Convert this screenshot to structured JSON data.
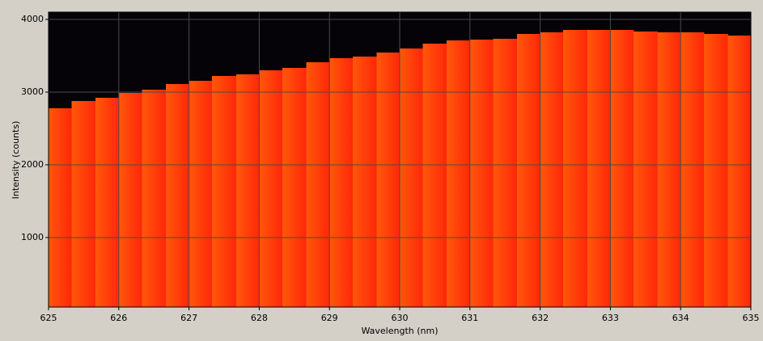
{
  "chart_data": {
    "type": "histogram",
    "xlabel": "Wavelength (nm)",
    "ylabel": "Intensity (counts)",
    "bins": [
      625,
      625.33,
      625.67,
      626,
      626.33,
      626.67,
      627,
      627.33,
      627.67,
      628,
      628.33,
      628.67,
      629,
      629.33,
      629.67,
      630,
      630.33,
      630.67,
      631,
      631.33,
      631.67,
      632,
      632.33,
      632.67,
      633,
      633.33,
      633.67,
      634,
      634.33,
      634.67,
      635
    ],
    "values": [
      2778,
      2878,
      2922,
      2989,
      3033,
      3111,
      3156,
      3222,
      3244,
      3300,
      3333,
      3411,
      3467,
      3489,
      3544,
      3600,
      3667,
      3711,
      3722,
      3733,
      3800,
      3822,
      3856,
      3856,
      3856,
      3833,
      3822,
      3822,
      3800,
      3778
    ],
    "color_start": "#ff580a",
    "color_end": "#ff260a",
    "background": "#050307",
    "xlim": [
      625,
      635
    ],
    "ylim": [
      44,
      4100
    ],
    "xticks": [
      625,
      626,
      627,
      628,
      629,
      630,
      631,
      632,
      633,
      634,
      635
    ],
    "yticks": [
      1000,
      2000,
      3000,
      4000
    ],
    "grid": true
  }
}
